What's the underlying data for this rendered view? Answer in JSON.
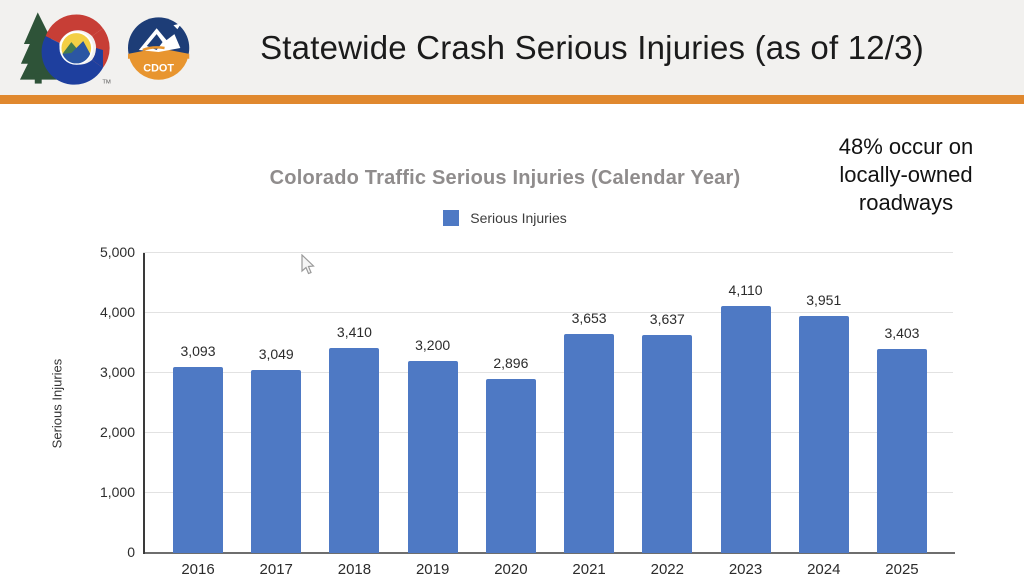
{
  "header": {
    "title": "Statewide Crash Serious Injuries (as of 12/3)",
    "cdot_logo_text": "CDOT",
    "trademark": "TM"
  },
  "annotation": {
    "lines": [
      "48% occur on",
      "locally-owned",
      "roadways"
    ]
  },
  "chart_data": {
    "type": "bar",
    "title": "Colorado Traffic Serious Injuries (Calendar Year)",
    "legend": [
      {
        "label": "Serious Injuries",
        "color": "#4e79c4"
      }
    ],
    "legend_position": "top",
    "categories": [
      "2016",
      "2017",
      "2018",
      "2019",
      "2020",
      "2021",
      "2022",
      "2023",
      "2024",
      "2025"
    ],
    "values": [
      3093,
      3049,
      3410,
      3200,
      2896,
      3653,
      3637,
      4110,
      3951,
      3403
    ],
    "value_labels": [
      "3,093",
      "3,049",
      "3,410",
      "3,200",
      "2,896",
      "3,653",
      "3,637",
      "4,110",
      "3,951",
      "3,403"
    ],
    "xlabel": "",
    "ylabel": "Serious Injuries",
    "ylim": [
      0,
      5000
    ],
    "yticks": [
      0,
      1000,
      2000,
      3000,
      4000,
      5000
    ],
    "ytick_labels": [
      "0",
      "1,000",
      "2,000",
      "3,000",
      "4,000",
      "5,000"
    ],
    "grid": true,
    "bar_color": "#4e79c4"
  },
  "colors": {
    "accent_orange": "#e0882e",
    "header_bg": "#f2f1ef",
    "bar_blue": "#4e79c4",
    "chart_title_gray": "#8f8c8c"
  }
}
